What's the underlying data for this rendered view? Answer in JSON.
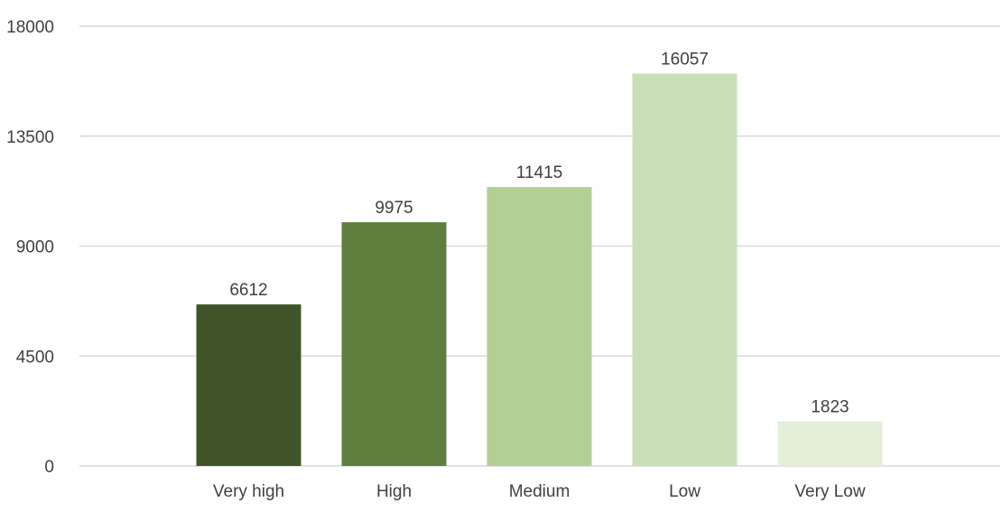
{
  "chart_data": {
    "type": "bar",
    "title": "",
    "xlabel": "",
    "ylabel": "",
    "categories": [
      "Very high",
      "High",
      "Medium",
      "Low",
      "Very Low"
    ],
    "values": [
      6612,
      9975,
      11415,
      16057,
      1823
    ],
    "data_labels": [
      "6612",
      "9975",
      "11415",
      "16057",
      "1823"
    ],
    "colors": [
      "#3f5529",
      "#5f7f3f",
      "#b3cf94",
      "#c9e0b6",
      "#e4efda"
    ],
    "ylim": [
      0,
      18000
    ],
    "yticks": [
      0,
      4500,
      9000,
      13500,
      18000
    ],
    "ytick_labels": [
      "0",
      "4500",
      "9000",
      "13500",
      "18000"
    ],
    "grid": true,
    "legend": "none"
  }
}
